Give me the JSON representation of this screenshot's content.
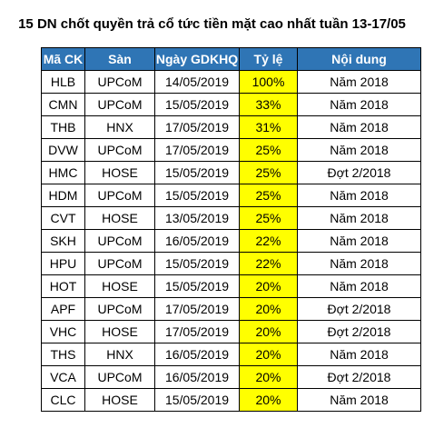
{
  "title": "15 DN chốt quyền trả cổ tức tiền mặt cao nhất tuần 13-17/05",
  "colors": {
    "header_bg": "#2f75b5",
    "header_text": "#ffffff",
    "rate_highlight": "#ffff00",
    "border": "#000000"
  },
  "table": {
    "headers": [
      "Mã CK",
      "Sàn",
      "Ngày GDKHQ",
      "Tỷ lệ",
      "Nội dung"
    ],
    "rows": [
      [
        "HLB",
        "UPCoM",
        "14/05/2019",
        "100%",
        "Năm 2018"
      ],
      [
        "CMN",
        "UPCoM",
        "15/05/2019",
        "33%",
        "Năm 2018"
      ],
      [
        "THB",
        "HNX",
        "17/05/2019",
        "31%",
        "Năm 2018"
      ],
      [
        "DVW",
        "UPCoM",
        "17/05/2019",
        "25%",
        "Năm 2018"
      ],
      [
        "HMC",
        "HOSE",
        "15/05/2019",
        "25%",
        "Đợt 2/2018"
      ],
      [
        "HDM",
        "UPCoM",
        "15/05/2019",
        "25%",
        "Năm 2018"
      ],
      [
        "CVT",
        "HOSE",
        "13/05/2019",
        "25%",
        "Năm 2018"
      ],
      [
        "SKH",
        "UPCoM",
        "16/05/2019",
        "22%",
        "Năm 2018"
      ],
      [
        "HPU",
        "UPCoM",
        "15/05/2019",
        "22%",
        "Năm 2018"
      ],
      [
        "HOT",
        "HOSE",
        "15/05/2019",
        "20%",
        "Năm 2018"
      ],
      [
        "APF",
        "UPCoM",
        "17/05/2019",
        "20%",
        "Đợt 2/2018"
      ],
      [
        "VHC",
        "HOSE",
        "17/05/2019",
        "20%",
        "Đợt 2/2018"
      ],
      [
        "THS",
        "HNX",
        "16/05/2019",
        "20%",
        "Năm 2018"
      ],
      [
        "VCA",
        "UPCoM",
        "16/05/2019",
        "20%",
        "Đợt 2/2018"
      ],
      [
        "CLC",
        "HOSE",
        "15/05/2019",
        "20%",
        "Năm 2018"
      ]
    ]
  }
}
